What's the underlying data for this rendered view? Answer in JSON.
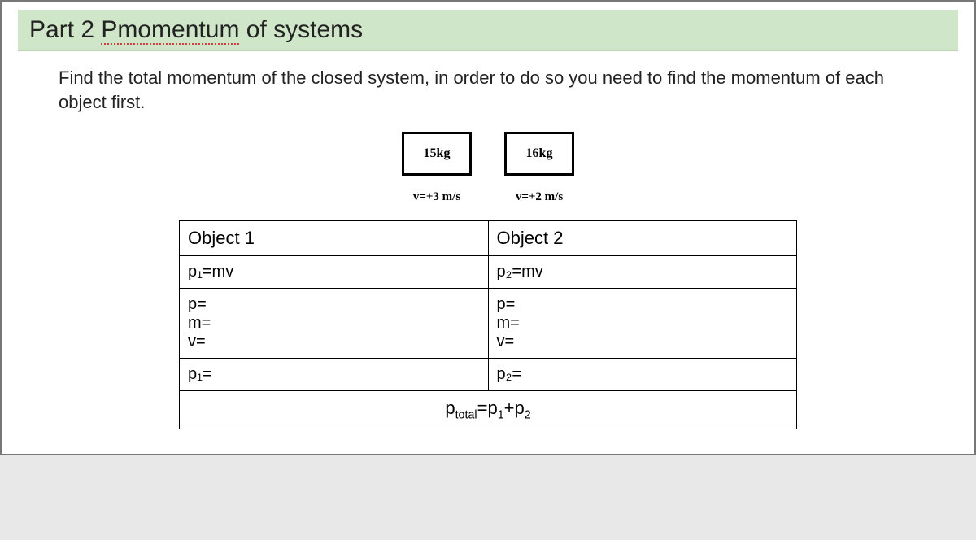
{
  "title_prefix": "Part 2 ",
  "title_typo": "Pmomentum",
  "title_suffix": " of systems",
  "instruction": "Find the total momentum of the closed system, in order to do so you need to find the momentum of each object first.",
  "diagram": {
    "obj1": {
      "mass": "15kg",
      "velocity": "v=+3 m/s"
    },
    "obj2": {
      "mass": "16kg",
      "velocity": "v=+2 m/s"
    }
  },
  "table": {
    "header1": "Object 1",
    "header2": "Object 2",
    "formula1": "p₁=mv",
    "formula2": "p₂=mv",
    "p_label": "p=",
    "m_label": "m=",
    "v_label": "v=",
    "result1": "p₁=",
    "result2": "p₂=",
    "total": "pₜₒₜₐₗ=p₁+p₂"
  },
  "colors": {
    "title_bg": "#cfe6c9",
    "typo_underline": "#d04040",
    "border": "#000000",
    "page_border": "#777777",
    "body_bg": "#e8e8e8"
  }
}
